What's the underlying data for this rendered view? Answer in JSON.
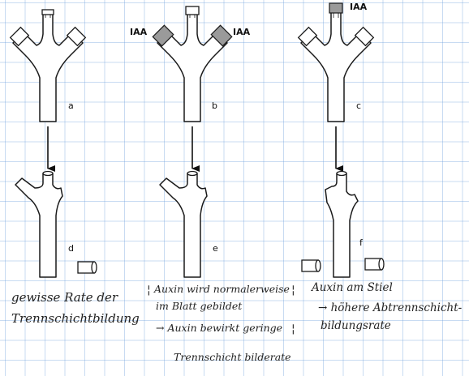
{
  "panels": {
    "a": {
      "label": "a"
    },
    "b": {
      "label": "b",
      "iaa_left": "IAA",
      "iaa_right": "IAA"
    },
    "c": {
      "label": "c",
      "iaa_top": "IAA"
    },
    "d": {
      "label": "d"
    },
    "e": {
      "label": "e"
    },
    "f": {
      "label": "f"
    }
  },
  "notes": {
    "d": [
      "gewisse Rate der",
      "Trennschichtbildung"
    ],
    "e": [
      "Auxin wird normalerweise",
      "im Blatt gebildet",
      "→ Auxin bewirkt geringe",
      "Trennschicht bilderate"
    ],
    "f": [
      "Auxin am Stiel",
      "→ höhere Abtrennschicht-",
      "bildungsrate"
    ]
  },
  "colors": {
    "grid": "#6ea0dc",
    "ink": "#1a1a1a",
    "auxin_shading": "#9a9a9a"
  }
}
